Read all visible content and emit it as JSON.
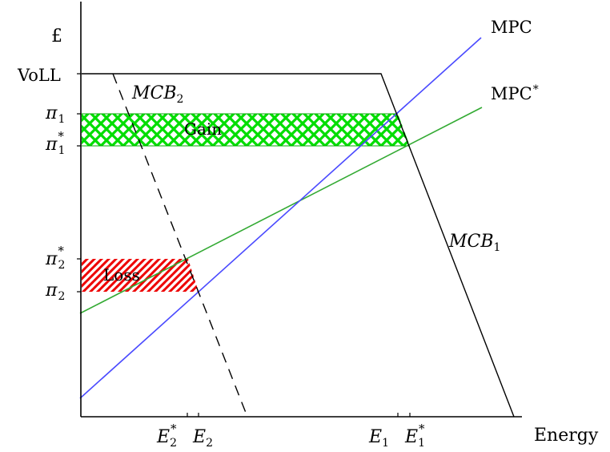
{
  "axes": {
    "y_unit": "£",
    "x_label": "Energy"
  },
  "y_ticks": {
    "voll": "VoLL",
    "pi1": "π",
    "pi1_sub": "1",
    "pi1_star": "π",
    "pi1_star_sub": "1",
    "pi1_star_sup": "*",
    "pi2_star": "π",
    "pi2_star_sub": "2",
    "pi2_star_sup": "*",
    "pi2": "π",
    "pi2_sub": "2"
  },
  "x_ticks": {
    "e2_star": "E",
    "e2_star_sub": "2",
    "e2_star_sup": "*",
    "e2": "E",
    "e2_sub": "2",
    "e1": "E",
    "e1_sub": "1",
    "e1_star": "E",
    "e1_star_sub": "1",
    "e1_star_sup": "*"
  },
  "curves": {
    "mpc": "MPC",
    "mpc_star": "MPC",
    "mpc_star_sup": "*",
    "mcb1": "MCB",
    "mcb1_sub": "1",
    "mcb2": "MCB",
    "mcb2_sub": "2"
  },
  "regions": {
    "gain": "Gain",
    "loss": "Loss"
  },
  "colors": {
    "mpc": "#4a4aff",
    "mpc_star": "#33aa33",
    "gain_hatch": "#00dd00",
    "loss_hatch": "#ee0000",
    "axes": "#000000"
  }
}
